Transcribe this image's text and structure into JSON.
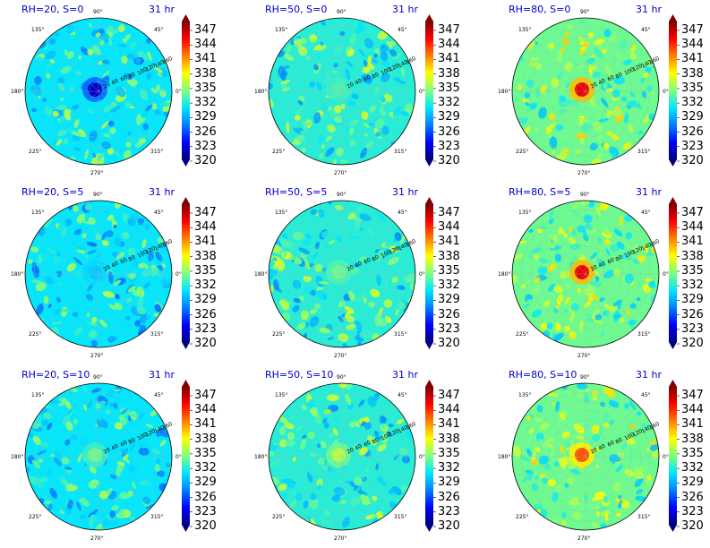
{
  "colormap": [
    "#00007f",
    "#0000ff",
    "#007fff",
    "#00e5ff",
    "#7fff7f",
    "#ffff00",
    "#ff7f00",
    "#ff0000",
    "#7f0000"
  ],
  "chart_data": {
    "type": "heatmap",
    "projection": "polar",
    "time_label": "31 hr",
    "colorbar": {
      "ticks": [
        "347",
        "344",
        "341",
        "338",
        "335",
        "332",
        "329",
        "326",
        "323",
        "320"
      ],
      "vmin": 320,
      "vmax": 349
    },
    "angle_labels": {
      "a90": "90°",
      "a135": "135°",
      "a45": "45°",
      "a180": "180°",
      "a0": "0°",
      "a225": "225°",
      "a315": "315°",
      "a270": "270°"
    },
    "radial_labels": [
      "20",
      "40",
      "60",
      "80",
      "100",
      "120",
      "140",
      "160"
    ],
    "panels": [
      {
        "title": "RH=20, S=0",
        "background_value": 331,
        "center_value": 322
      },
      {
        "title": "RH=50, S=0",
        "background_value": 332,
        "center_value": 333
      },
      {
        "title": "RH=80, S=0",
        "background_value": 334,
        "center_value": 346
      },
      {
        "title": "RH=20, S=5",
        "background_value": 331,
        "center_value": 330
      },
      {
        "title": "RH=50, S=5",
        "background_value": 332,
        "center_value": 334
      },
      {
        "title": "RH=80, S=5",
        "background_value": 334,
        "center_value": 346
      },
      {
        "title": "RH=20, S=10",
        "background_value": 331,
        "center_value": 334
      },
      {
        "title": "RH=50, S=10",
        "background_value": 332,
        "center_value": 336
      },
      {
        "title": "RH=80, S=10",
        "background_value": 334,
        "center_value": 343
      }
    ]
  }
}
